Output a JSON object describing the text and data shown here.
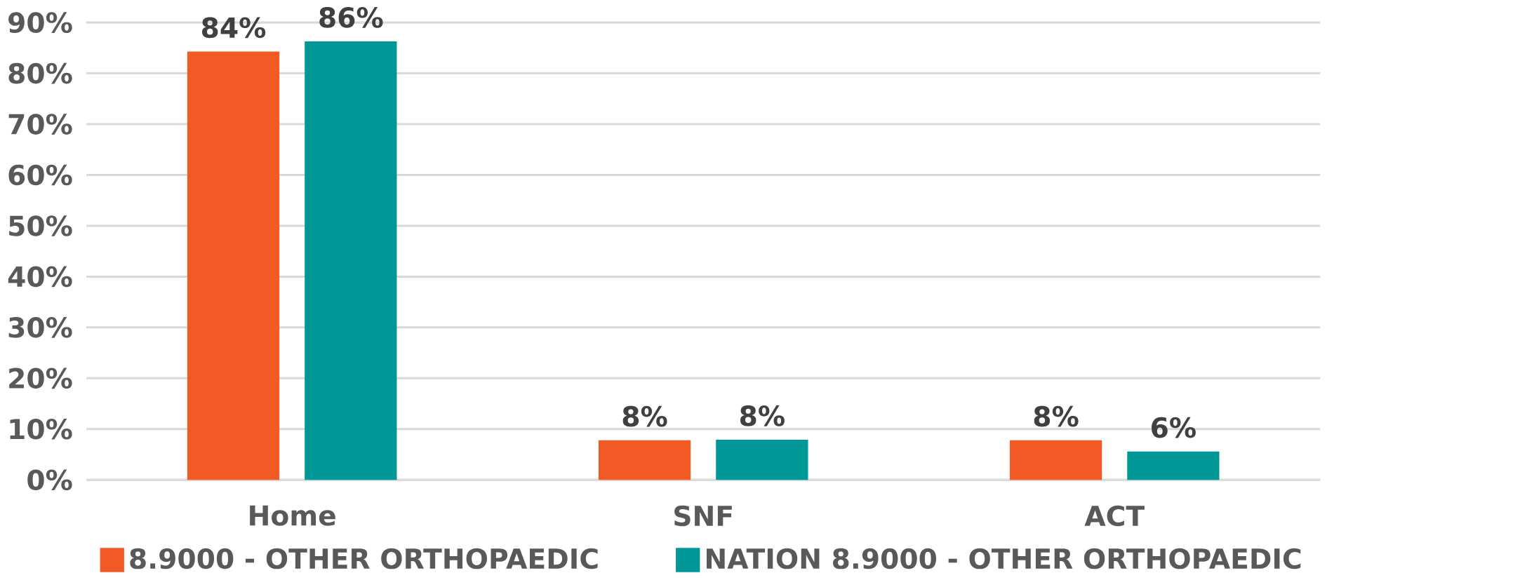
{
  "chart_data": {
    "type": "bar",
    "categories": [
      "Home",
      "SNF",
      "ACT"
    ],
    "series": [
      {
        "name": "8.9000  - OTHER ORTHOPAEDIC",
        "color": "#f15a24",
        "values": [
          84.3,
          7.8,
          7.8
        ],
        "value_labels": [
          "84%",
          "8%",
          "8%"
        ]
      },
      {
        "name": "NATION 8.9000  - OTHER ORTHOPAEDIC",
        "color": "#009797",
        "values": [
          86.3,
          7.9,
          5.6
        ],
        "value_labels": [
          "86%",
          "8%",
          "6%"
        ]
      }
    ],
    "ylim": [
      0,
      90
    ],
    "yticks": [
      {
        "value": 0,
        "label": "0%"
      },
      {
        "value": 10,
        "label": "10%"
      },
      {
        "value": 20,
        "label": "20%"
      },
      {
        "value": 30,
        "label": "30%"
      },
      {
        "value": 40,
        "label": "40%"
      },
      {
        "value": 50,
        "label": "50%"
      },
      {
        "value": 60,
        "label": "60%"
      },
      {
        "value": 70,
        "label": "70%"
      },
      {
        "value": 80,
        "label": "80%"
      },
      {
        "value": 90,
        "label": "90%"
      }
    ],
    "grid": "y",
    "legend": "bottom"
  }
}
